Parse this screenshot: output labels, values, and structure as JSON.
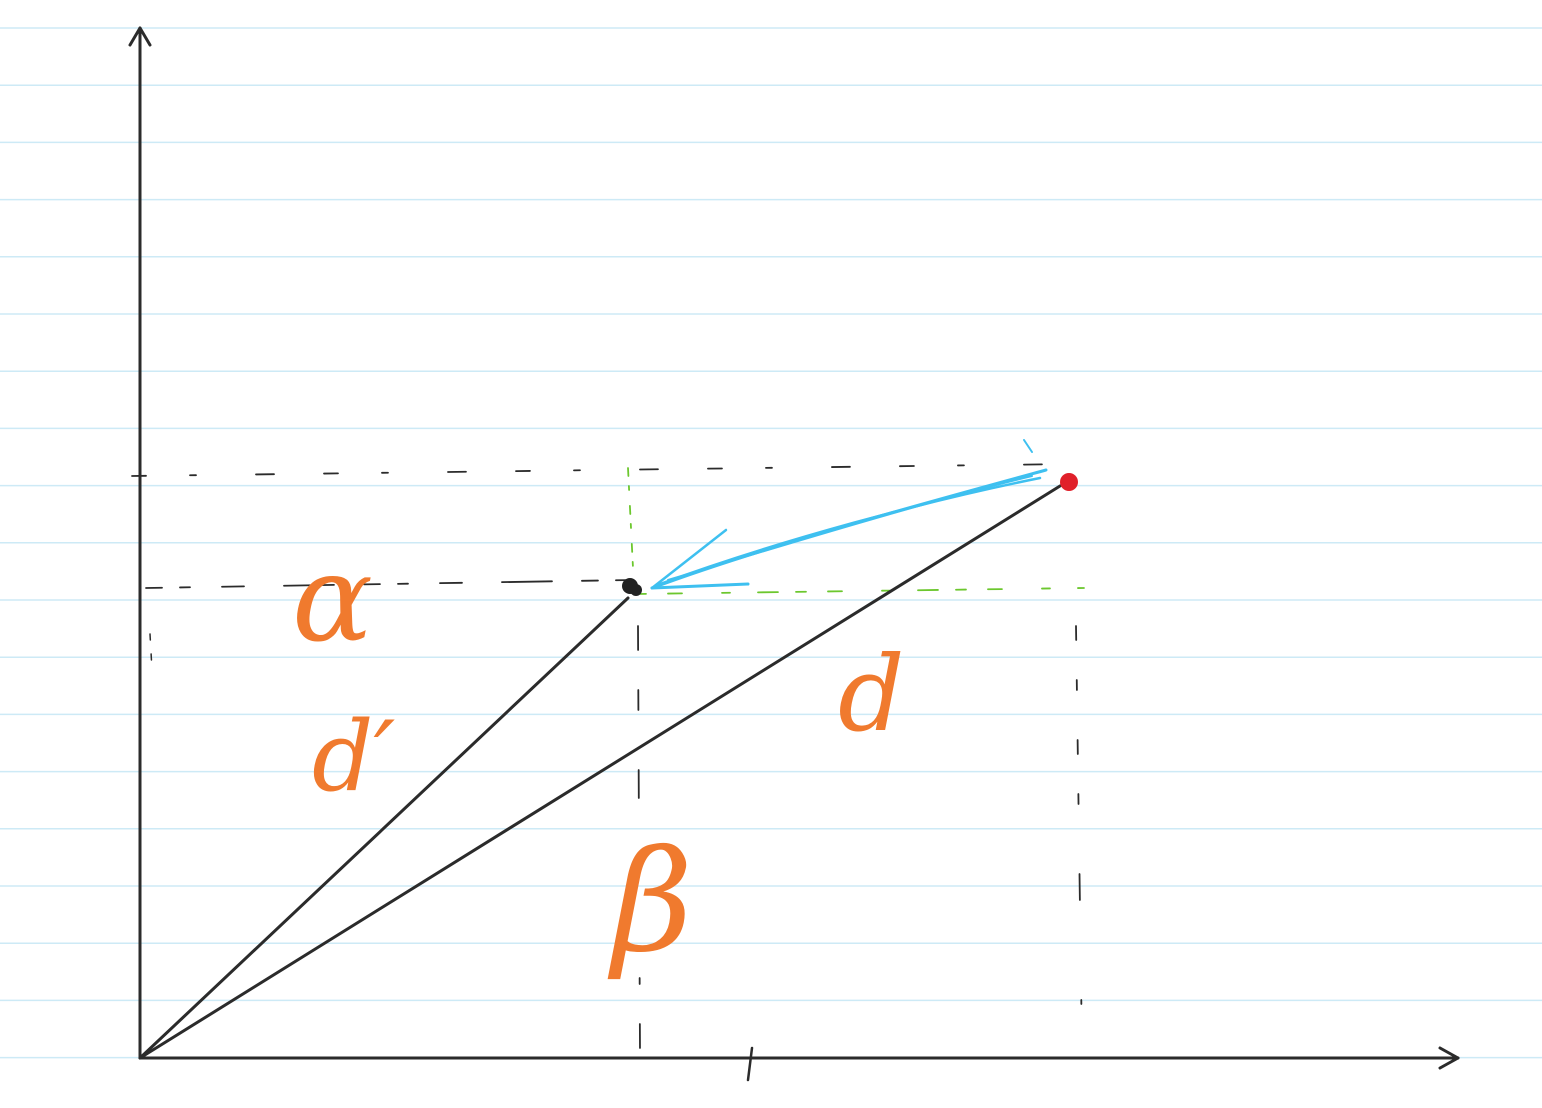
{
  "page": {
    "background": "#ffffff",
    "rule_color": "#cdeaf6"
  },
  "colors": {
    "axis": "#2b2b2b",
    "guide_black": "#2b2b2b",
    "guide_green": "#6cc72e",
    "vector_blue": "#3ec0f0",
    "label_orange": "#f07a2e",
    "point_black": "#222222",
    "point_red": "#e0202a"
  },
  "labels": {
    "alpha": "α",
    "beta": "β",
    "d": "d",
    "d_prime": "d′"
  },
  "points": {
    "moved_point": "point-black",
    "original_point": "point-red"
  }
}
